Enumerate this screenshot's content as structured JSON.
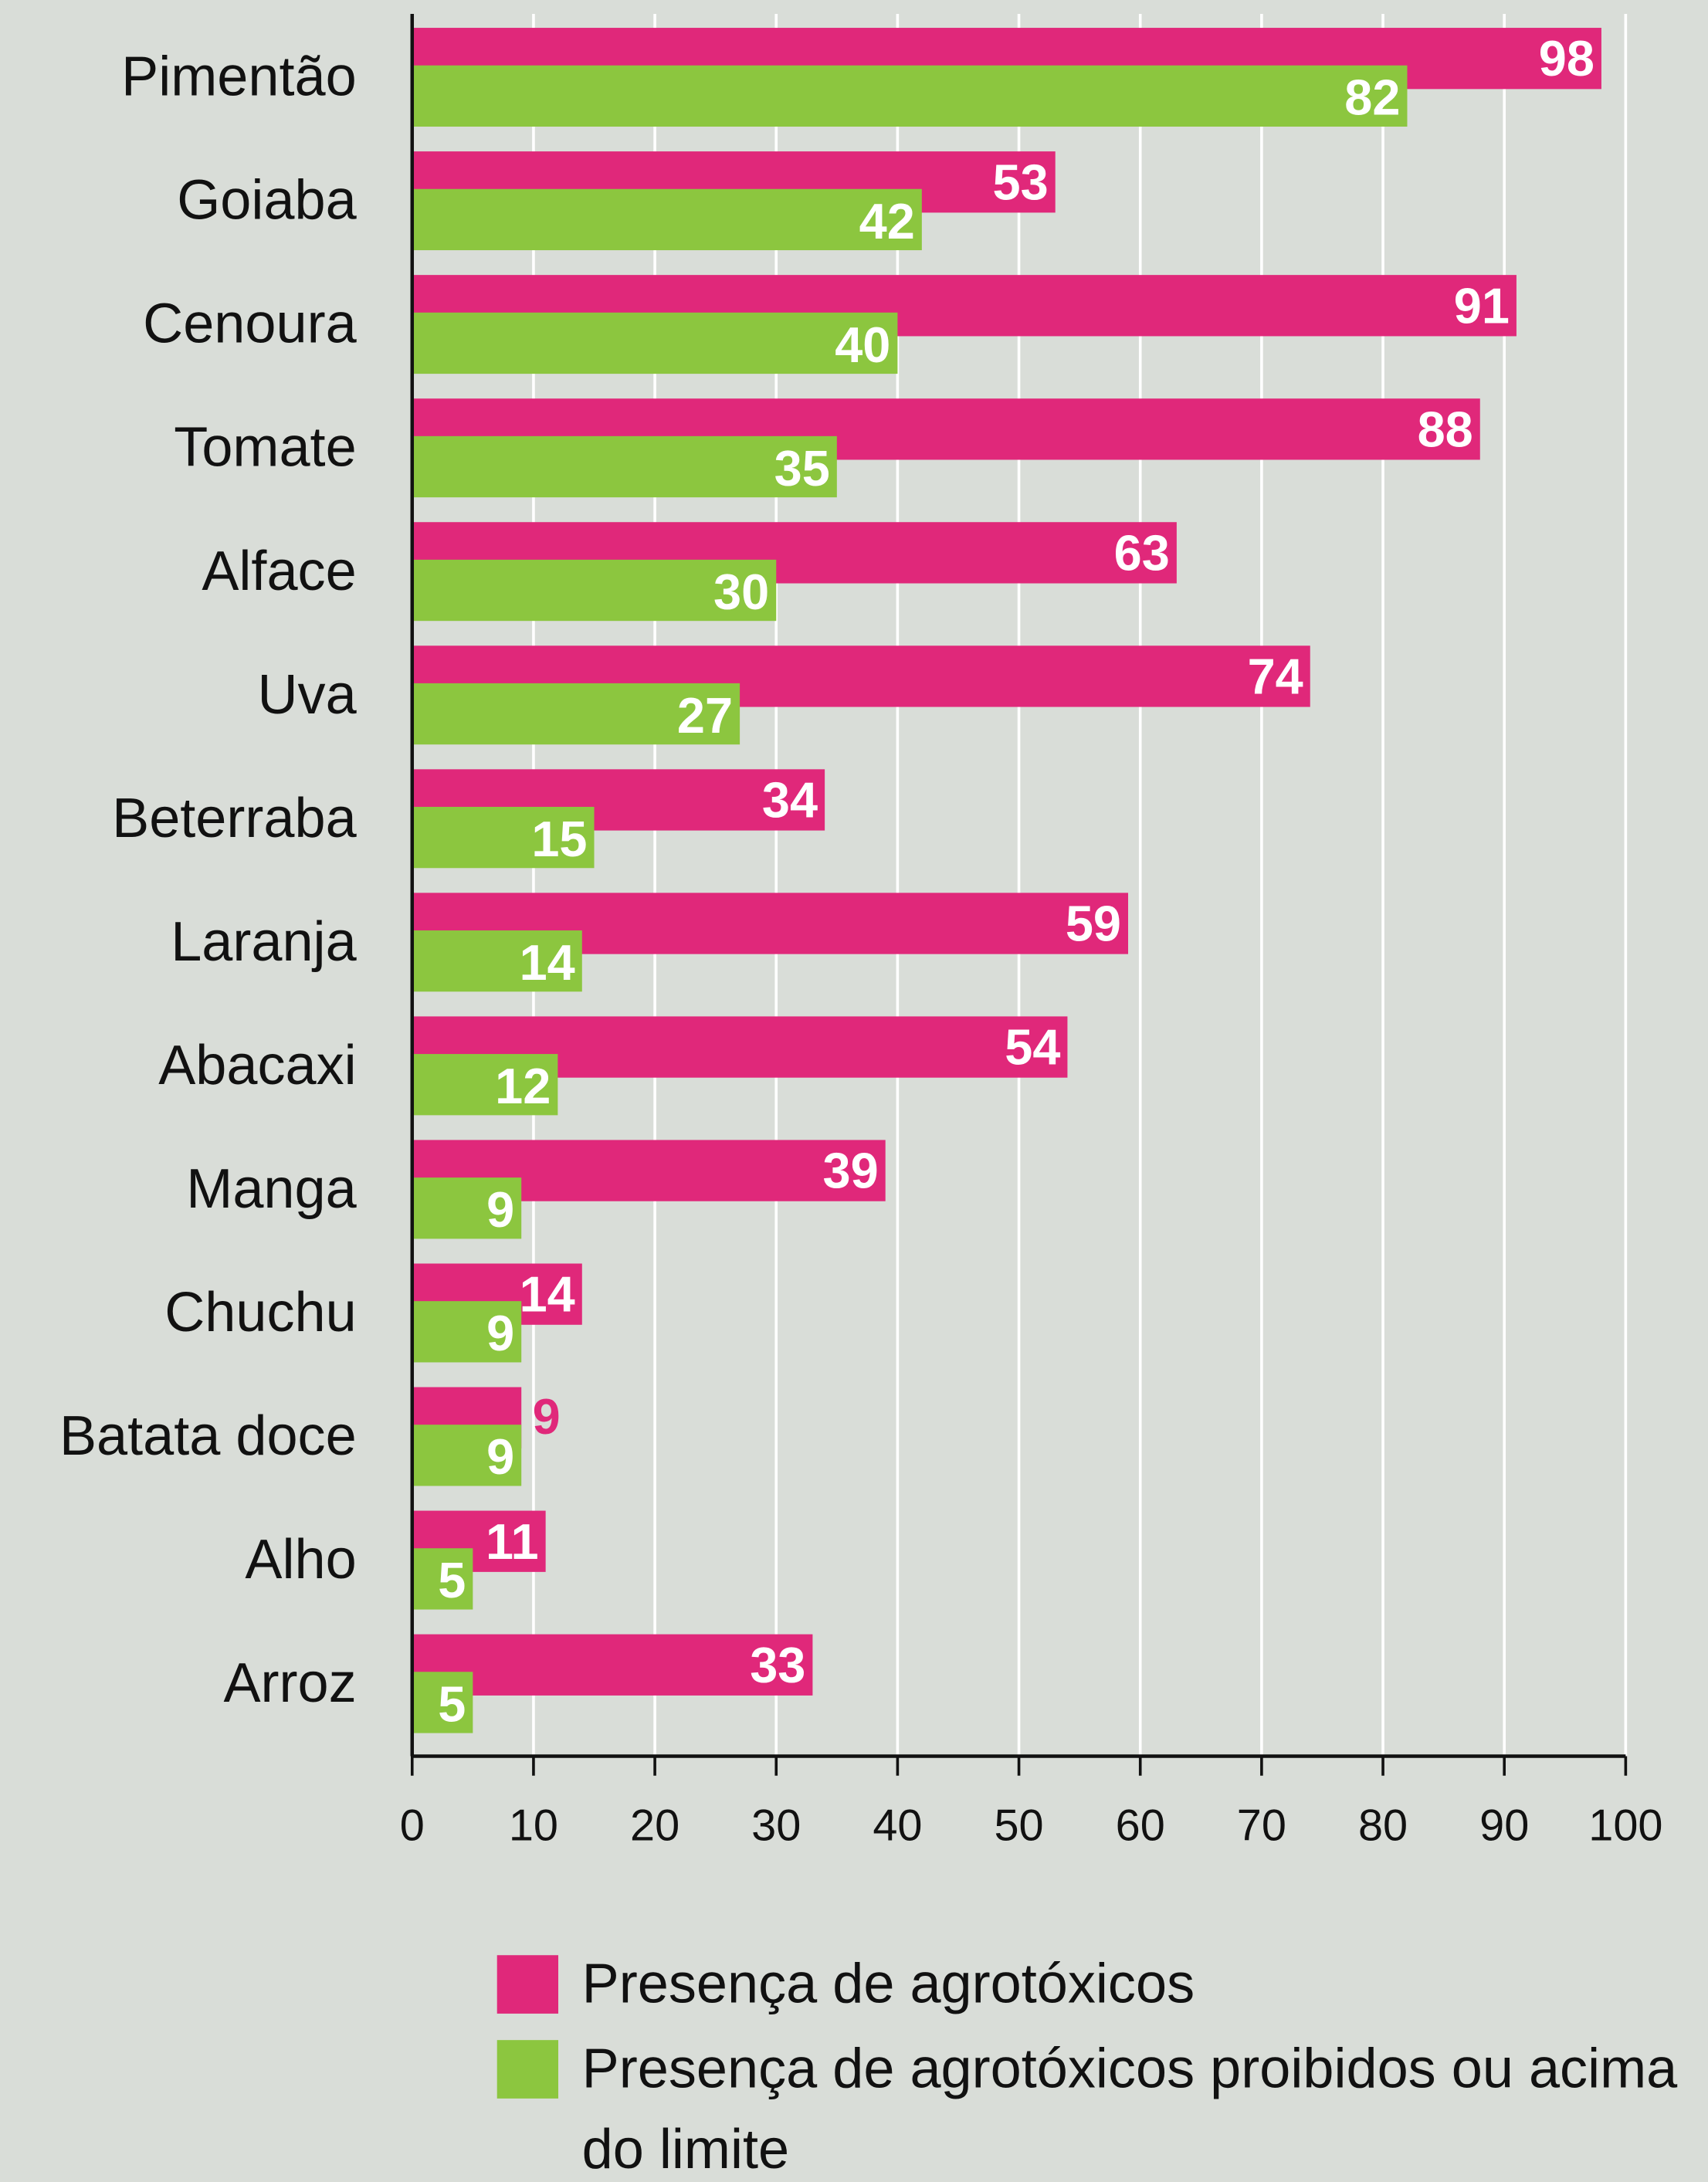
{
  "chart_data": {
    "type": "bar",
    "orientation": "horizontal",
    "categories": [
      "Pimentão",
      "Goiaba",
      "Cenoura",
      "Tomate",
      "Alface",
      "Uva",
      "Beterraba",
      "Laranja",
      "Abacaxi",
      "Manga",
      "Chuchu",
      "Batata doce",
      "Alho",
      "Arroz"
    ],
    "series": [
      {
        "name": "Presença de agrotóxicos",
        "color": "#e0287a",
        "values": [
          98,
          53,
          91,
          88,
          63,
          74,
          34,
          59,
          54,
          39,
          14,
          9,
          11,
          33
        ]
      },
      {
        "name": "Presença de agrotóxicos proibidos ou acima do limite",
        "color": "#8cc63f",
        "values": [
          82,
          42,
          40,
          35,
          30,
          27,
          15,
          14,
          12,
          9,
          9,
          9,
          5,
          5
        ]
      }
    ],
    "xlim": [
      0,
      100
    ],
    "xticks": [
      0,
      10,
      20,
      30,
      40,
      50,
      60,
      70,
      80,
      90,
      100
    ],
    "grid": true
  }
}
